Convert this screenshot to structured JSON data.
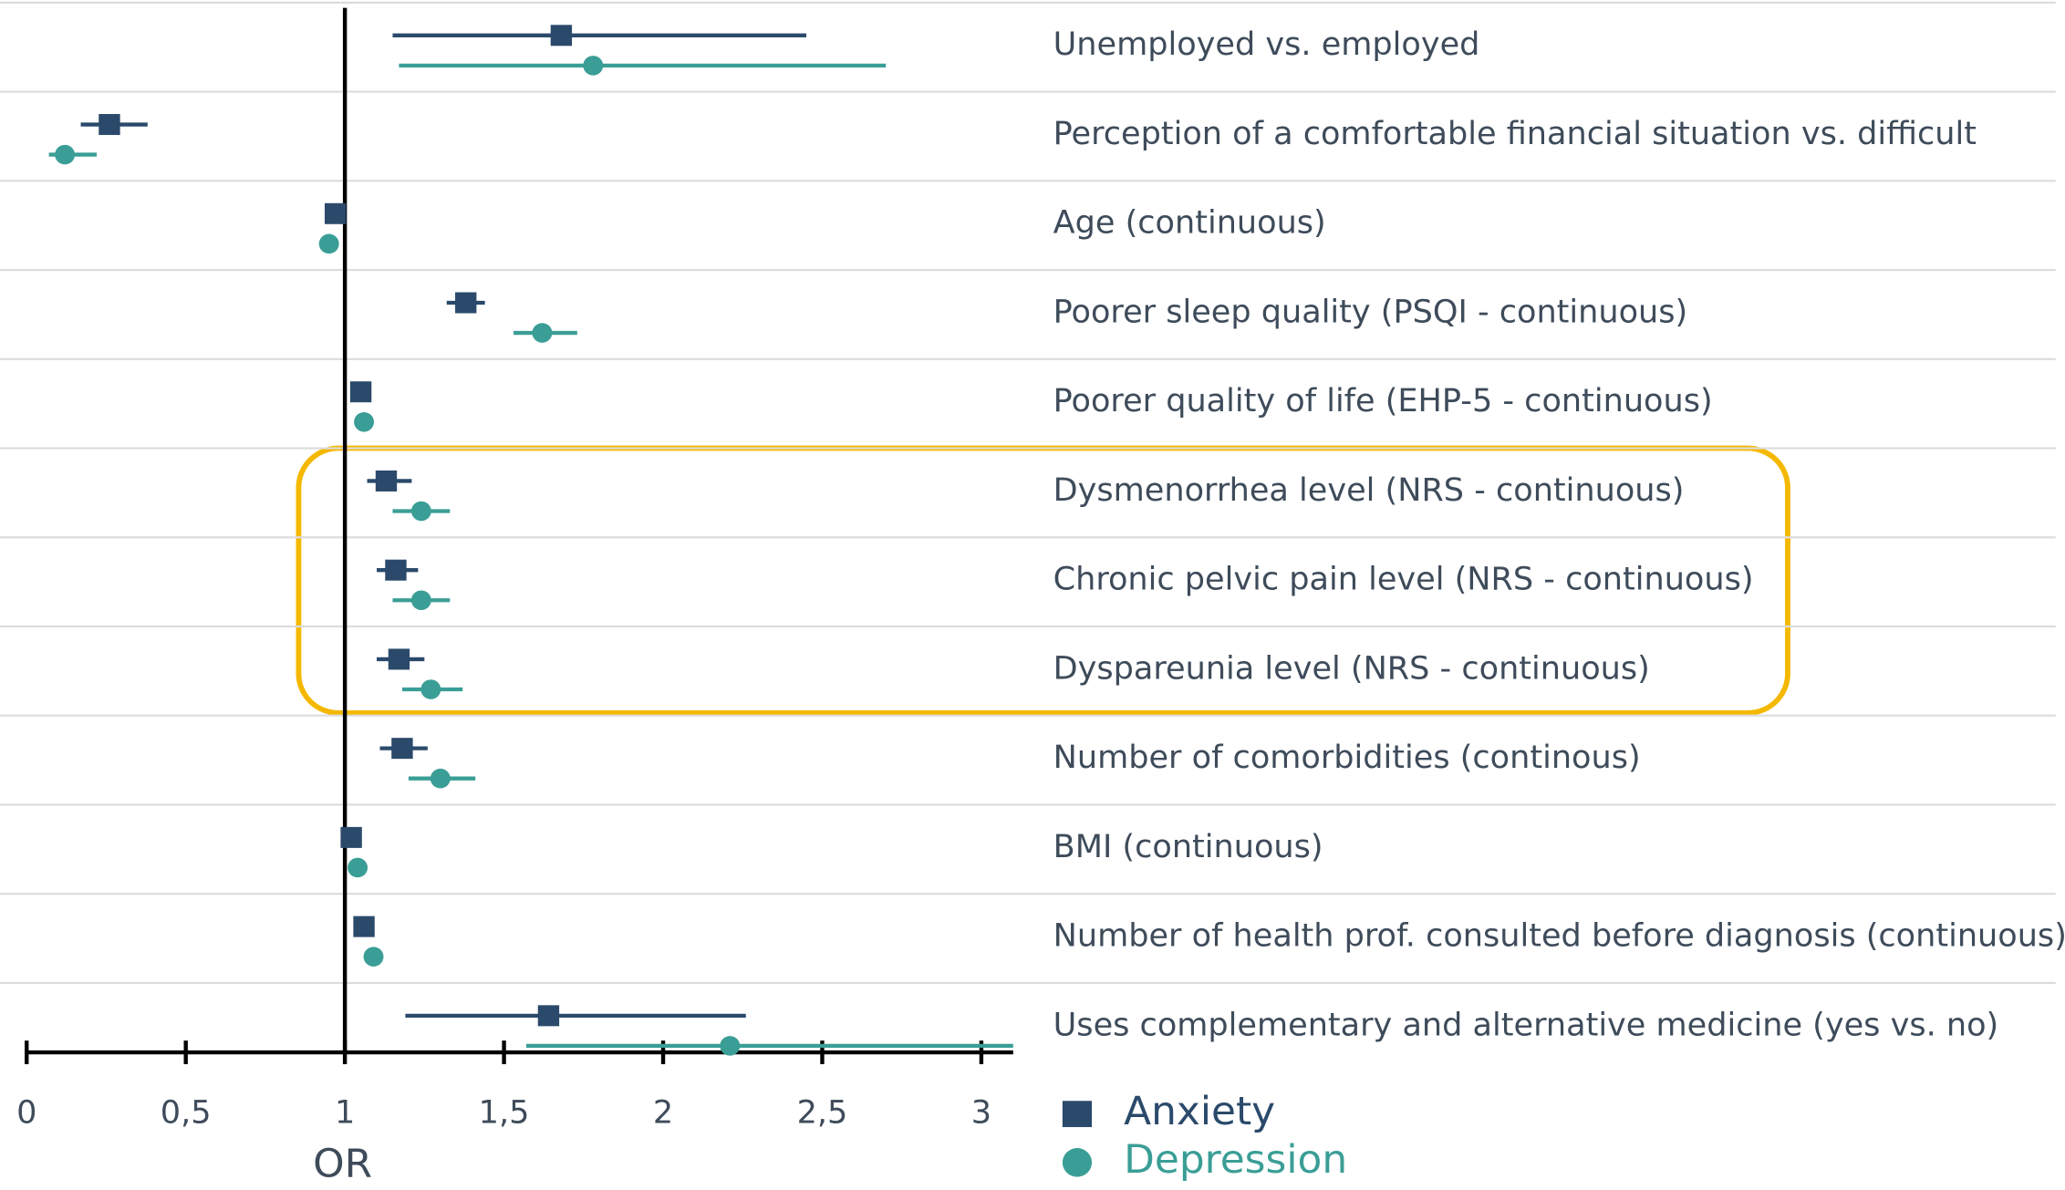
{
  "chart_data": {
    "type": "forest",
    "x_label": "OR",
    "categories": [
      "Unemployed vs. employed",
      "Perception of a comfortable financial situation vs. difficult",
      "Age (continuous)",
      "Poorer sleep quality (PSQI - continuous)",
      "Poorer quality of life (EHP-5 - continuous)",
      "Dysmenorrhea level (NRS - continuous)",
      "Chronic pelvic pain level (NRS - continuous)",
      "Dyspareunia level (NRS - continuous)",
      "Number of comorbidities (continous)",
      "BMI (continuous)",
      "Number of health prof. consulted before diagnosis (continuous)",
      "Uses complementary and alternative medicine (yes vs. no)"
    ],
    "series": [
      {
        "name": "Anxiety",
        "color": "#2b4a6b",
        "marker": "square",
        "values": [
          1.68,
          0.26,
          0.97,
          1.38,
          1.05,
          1.13,
          1.16,
          1.17,
          1.18,
          1.02,
          1.06,
          1.64
        ],
        "lower": [
          1.15,
          0.17,
          0.95,
          1.32,
          1.04,
          1.07,
          1.1,
          1.1,
          1.11,
          1.01,
          1.05,
          1.19
        ],
        "upper": [
          2.45,
          0.38,
          0.99,
          1.44,
          1.06,
          1.21,
          1.23,
          1.25,
          1.26,
          1.03,
          1.07,
          2.26
        ]
      },
      {
        "name": "Depression",
        "color": "#3a9e96",
        "marker": "circle",
        "values": [
          1.78,
          0.12,
          0.95,
          1.62,
          1.06,
          1.24,
          1.24,
          1.27,
          1.3,
          1.04,
          1.09,
          2.21
        ],
        "lower": [
          1.17,
          0.07,
          0.94,
          1.53,
          1.05,
          1.15,
          1.15,
          1.18,
          1.2,
          1.03,
          1.08,
          1.57
        ],
        "upper": [
          2.7,
          0.22,
          0.96,
          1.73,
          1.07,
          1.33,
          1.33,
          1.37,
          1.41,
          1.05,
          1.1,
          3.1
        ]
      }
    ],
    "xlim": [
      0,
      3.1
    ],
    "xticks": [
      0,
      {
        "value": 0.5,
        "label": "0,5"
      },
      1,
      {
        "value": 1.5,
        "label": "1,5"
      },
      2,
      {
        "value": 2.5,
        "label": "2,5"
      },
      3
    ],
    "reference_line": 1
  }
}
